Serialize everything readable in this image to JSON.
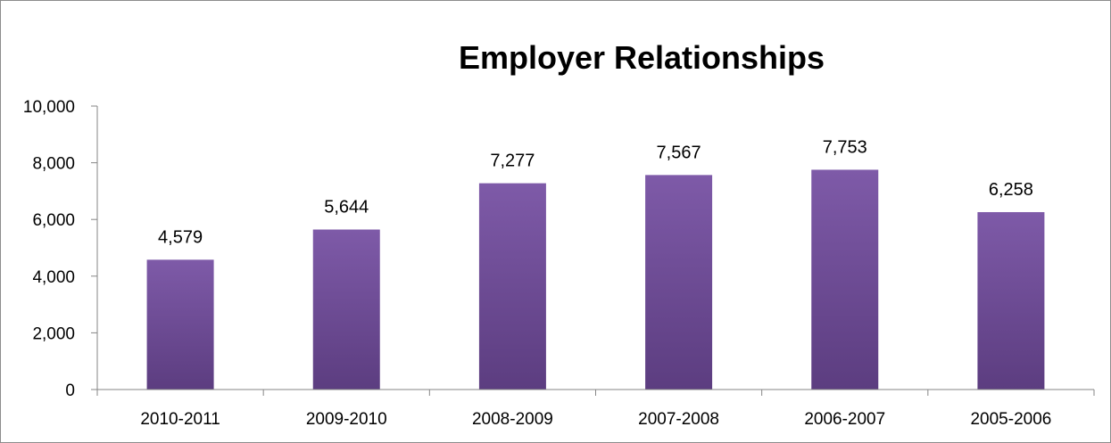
{
  "chart_data": {
    "type": "bar",
    "title": "Employer Relationships",
    "xlabel": "",
    "ylabel": "",
    "categories": [
      "2010-2011",
      "2009-2010",
      "2008-2009",
      "2007-2008",
      "2006-2007",
      "2005-2006"
    ],
    "values": [
      4579,
      5644,
      7277,
      7567,
      7753,
      6258
    ],
    "value_labels": [
      "4,579",
      "5,644",
      "7,277",
      "7,567",
      "7,753",
      "6,258"
    ],
    "ylim": [
      0,
      10000
    ],
    "yticks": [
      0,
      2000,
      4000,
      6000,
      8000,
      10000
    ],
    "ytick_labels": [
      "0",
      "2,000",
      "4,000",
      "6,000",
      "8,000",
      "10,000"
    ],
    "grid": false,
    "legend": "none",
    "bar_color_top": "#7e5aa8",
    "bar_color_bottom": "#5c3d80",
    "axis_color": "#868686"
  }
}
